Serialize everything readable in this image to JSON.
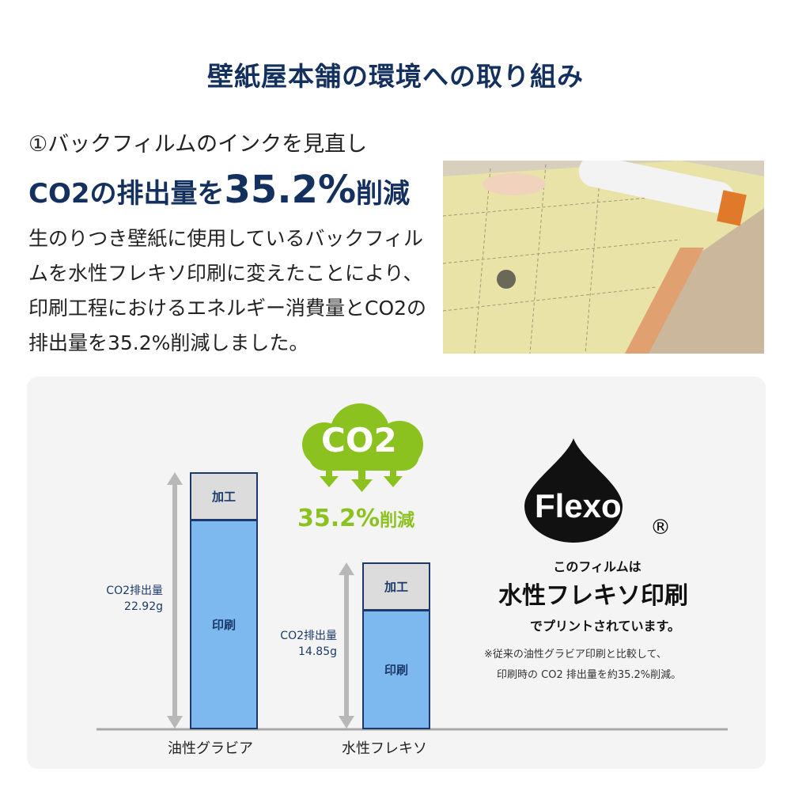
{
  "title": "壁紙屋本舗の環境への取り組み",
  "heading": {
    "line1": "①バックフィルムのインクを見直し",
    "line2_prefix": "CO2の排出量を",
    "line2_value": "35.2%",
    "line2_suffix": "削減"
  },
  "body_text": "生のりつき壁紙に使用しているバックフィルムを水性フレキソ印刷に変えたことにより、印刷工程におけるエネルギー消費量とCO2の排出量を35.2%削減しました。",
  "cloud": {
    "label": "CO2",
    "reduction_value": "35.2%",
    "reduction_suffix": "削減"
  },
  "flexo": {
    "logo_text": "Flexo",
    "registered": "®",
    "line1": "このフィルムは",
    "line2": "水性フレキソ印刷",
    "line3": "でプリントされています。",
    "note1": "※従来の油性グラビア印刷と比較して、",
    "note2": "印刷時の CO2 排出量を約35.2%削減。"
  },
  "colors": {
    "navy": "#14305e",
    "green": "#8cc21f",
    "print_blue": "#7db8ef",
    "process_gray": "#dcdcdc"
  },
  "chart_data": {
    "type": "bar",
    "stacked": true,
    "categories": [
      "油性グラビア",
      "水性フレキソ"
    ],
    "series": [
      {
        "name": "印刷",
        "values": [
          18.7,
          10.6
        ]
      },
      {
        "name": "加工",
        "values": [
          4.22,
          4.25
        ]
      }
    ],
    "totals": [
      22.92,
      14.85
    ],
    "total_labels": [
      {
        "label": "CO2排出量",
        "value": "22.92g"
      },
      {
        "label": "CO2排出量",
        "value": "14.85g"
      }
    ],
    "ylim": [
      0,
      22.92
    ]
  }
}
